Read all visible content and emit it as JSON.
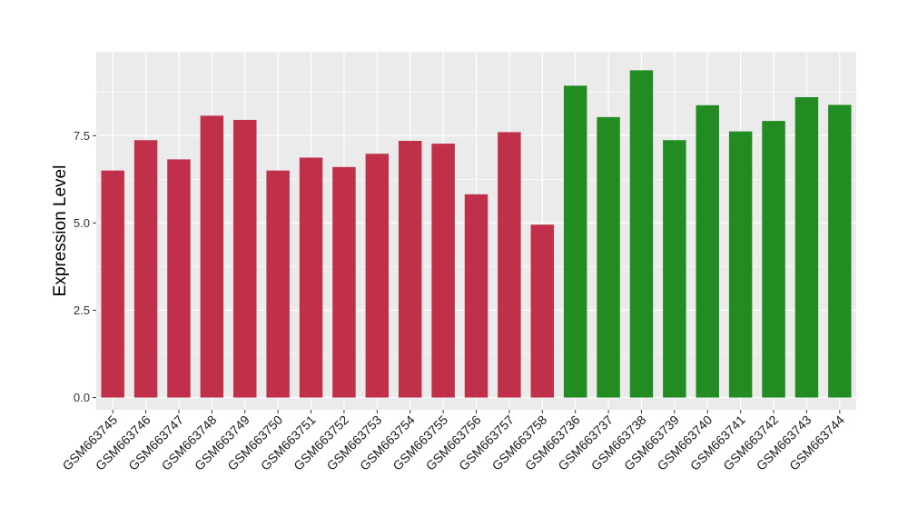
{
  "chart_data": {
    "type": "bar",
    "title": "",
    "xlabel": "",
    "ylabel": "Expression Level",
    "ylim": [
      -0.35,
      9.9
    ],
    "y_ticks": [
      0.0,
      2.5,
      5.0,
      7.5
    ],
    "y_tick_labels": [
      "0.0",
      "2.5",
      "5.0",
      "7.5"
    ],
    "grid": true,
    "legend": "none",
    "categories": [
      "GSM663745",
      "GSM663746",
      "GSM663747",
      "GSM663748",
      "GSM663749",
      "GSM663750",
      "GSM663751",
      "GSM663752",
      "GSM663753",
      "GSM663754",
      "GSM663755",
      "GSM663756",
      "GSM663757",
      "GSM663758",
      "GSM663736",
      "GSM663737",
      "GSM663738",
      "GSM663739",
      "GSM663740",
      "GSM663741",
      "GSM663742",
      "GSM663743",
      "GSM663744"
    ],
    "values": [
      6.5,
      7.37,
      6.82,
      8.07,
      7.95,
      6.5,
      6.87,
      6.6,
      6.98,
      7.35,
      7.27,
      5.82,
      7.6,
      4.95,
      8.93,
      8.03,
      9.37,
      7.37,
      8.37,
      7.62,
      7.92,
      8.6,
      8.38
    ],
    "colors": [
      "#c0304a",
      "#c0304a",
      "#c0304a",
      "#c0304a",
      "#c0304a",
      "#c0304a",
      "#c0304a",
      "#c0304a",
      "#c0304a",
      "#c0304a",
      "#c0304a",
      "#c0304a",
      "#c0304a",
      "#c0304a",
      "#228b22",
      "#228b22",
      "#228b22",
      "#228b22",
      "#228b22",
      "#228b22",
      "#228b22",
      "#228b22",
      "#228b22"
    ],
    "panel_background": "#ebebeb",
    "grid_color": "#ffffff"
  }
}
